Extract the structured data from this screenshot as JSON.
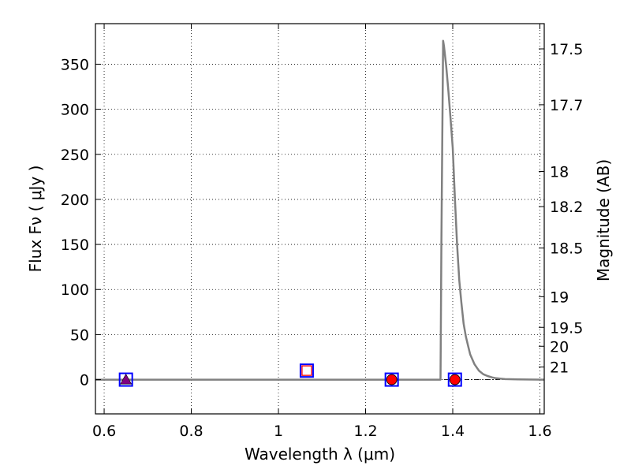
{
  "chart_data": {
    "type": "line",
    "xlabel": "Wavelength  λ (μm)",
    "ylabel": "Flux  Fν  ( μJy )",
    "y2label": "Magnitude (AB)",
    "xlim": [
      0.58,
      1.61
    ],
    "ylim": [
      -38,
      395
    ],
    "grid": true,
    "x_ticks": [
      0.6,
      0.8,
      1.0,
      1.2,
      1.4,
      1.6
    ],
    "x_tick_labels": [
      "0.6",
      "0.8",
      "1",
      "1.2",
      "1.4",
      "1.6"
    ],
    "y_ticks": [
      0,
      50,
      100,
      150,
      200,
      250,
      300,
      350
    ],
    "y_tick_labels": [
      "0",
      "50",
      "100",
      "150",
      "200",
      "250",
      "300",
      "350"
    ],
    "mag_ticks": [
      {
        "label": "17.5",
        "flux": 367
      },
      {
        "label": "17.7",
        "flux": 305
      },
      {
        "label": "18",
        "flux": 231
      },
      {
        "label": "18.2",
        "flux": 192
      },
      {
        "label": "18.5",
        "flux": 146
      },
      {
        "label": "19",
        "flux": 92
      },
      {
        "label": "19.5",
        "flux": 58
      },
      {
        "label": "20",
        "flux": 37
      },
      {
        "label": "21",
        "flux": 14
      }
    ],
    "series": [
      {
        "style": "line",
        "color": "#808080",
        "x": [
          0.58,
          1.372,
          1.374,
          1.378,
          1.38,
          1.385,
          1.39,
          1.395,
          1.4,
          1.405,
          1.41,
          1.415,
          1.42,
          1.425,
          1.43,
          1.435,
          1.44,
          1.45,
          1.46,
          1.47,
          1.48,
          1.49,
          1.5,
          1.52,
          1.55,
          1.61
        ],
        "y": [
          0,
          0,
          150,
          376,
          370,
          348,
          320,
          290,
          257,
          200,
          150,
          110,
          85,
          62,
          48,
          38,
          28,
          17,
          10,
          6,
          4,
          2.5,
          1.5,
          0.6,
          0.2,
          0
        ]
      },
      {
        "style": "markers",
        "marker": "open-square",
        "color": "#0000ff",
        "x": [
          0.65,
          1.26,
          1.405
        ],
        "y": [
          0,
          0,
          0
        ]
      },
      {
        "style": "markers",
        "marker": "triangle",
        "color": "#800080",
        "x": [
          0.65
        ],
        "y": [
          0
        ]
      },
      {
        "style": "markers",
        "marker": "open-square",
        "color": "#0000ff",
        "x": [
          1.065
        ],
        "y": [
          10
        ]
      },
      {
        "style": "markers",
        "marker": "open-square",
        "color": "#ff0000",
        "x": [
          1.065
        ],
        "y": [
          10
        ]
      },
      {
        "style": "markers",
        "marker": "circle",
        "color": "#ff0000",
        "x": [
          1.26,
          1.405
        ],
        "y": [
          0,
          0
        ]
      }
    ]
  }
}
